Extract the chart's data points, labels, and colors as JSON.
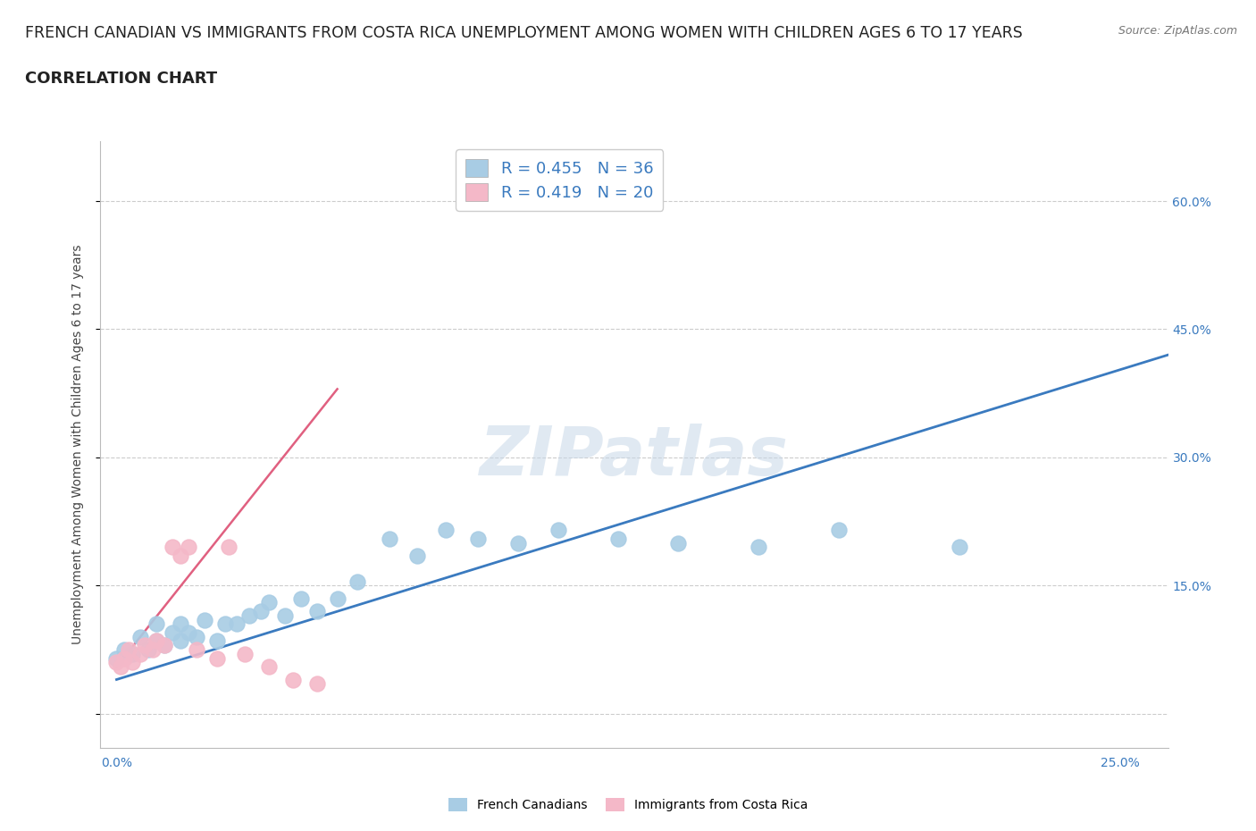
{
  "title_line1": "FRENCH CANADIAN VS IMMIGRANTS FROM COSTA RICA UNEMPLOYMENT AMONG WOMEN WITH CHILDREN AGES 6 TO 17 YEARS",
  "title_line2": "CORRELATION CHART",
  "source_text": "Source: ZipAtlas.com",
  "ylabel": "Unemployment Among Women with Children Ages 6 to 17 years",
  "x_ticks": [
    0.0,
    0.05,
    0.1,
    0.15,
    0.2,
    0.25
  ],
  "x_tick_labels": [
    "0.0%",
    "",
    "",
    "",
    "",
    "25.0%"
  ],
  "y_ticks": [
    0.0,
    0.15,
    0.3,
    0.45,
    0.6
  ],
  "y_tick_labels": [
    "",
    "15.0%",
    "30.0%",
    "45.0%",
    "60.0%"
  ],
  "xlim": [
    -0.004,
    0.262
  ],
  "ylim": [
    -0.04,
    0.67
  ],
  "watermark": "ZIPatlas",
  "legend_r1": "R = 0.455",
  "legend_n1": "N = 36",
  "legend_r2": "R = 0.419",
  "legend_n2": "N = 20",
  "blue_color": "#a8cce4",
  "pink_color": "#f4b8c8",
  "blue_line_color": "#3a7abf",
  "pink_line_color": "#e06080",
  "blue_scatter_x": [
    0.0,
    0.002,
    0.004,
    0.006,
    0.008,
    0.01,
    0.01,
    0.012,
    0.014,
    0.016,
    0.016,
    0.018,
    0.02,
    0.022,
    0.025,
    0.027,
    0.03,
    0.033,
    0.036,
    0.038,
    0.042,
    0.046,
    0.05,
    0.055,
    0.06,
    0.068,
    0.075,
    0.082,
    0.09,
    0.1,
    0.11,
    0.125,
    0.14,
    0.16,
    0.18,
    0.21
  ],
  "blue_scatter_y": [
    0.065,
    0.075,
    0.07,
    0.09,
    0.075,
    0.085,
    0.105,
    0.08,
    0.095,
    0.085,
    0.105,
    0.095,
    0.09,
    0.11,
    0.085,
    0.105,
    0.105,
    0.115,
    0.12,
    0.13,
    0.115,
    0.135,
    0.12,
    0.135,
    0.155,
    0.205,
    0.185,
    0.215,
    0.205,
    0.2,
    0.215,
    0.205,
    0.2,
    0.195,
    0.215,
    0.195
  ],
  "pink_scatter_x": [
    0.0,
    0.001,
    0.002,
    0.003,
    0.004,
    0.006,
    0.007,
    0.009,
    0.01,
    0.012,
    0.014,
    0.016,
    0.018,
    0.02,
    0.025,
    0.028,
    0.032,
    0.038,
    0.044,
    0.05
  ],
  "pink_scatter_y": [
    0.06,
    0.055,
    0.065,
    0.075,
    0.06,
    0.07,
    0.08,
    0.075,
    0.085,
    0.08,
    0.195,
    0.185,
    0.195,
    0.075,
    0.065,
    0.195,
    0.07,
    0.055,
    0.04,
    0.035
  ],
  "blue_trend_x": [
    0.0,
    0.262
  ],
  "blue_trend_y": [
    0.04,
    0.42
  ],
  "pink_trend_x": [
    0.0,
    0.055
  ],
  "pink_trend_y": [
    0.055,
    0.38
  ],
  "grid_color": "#cccccc",
  "background_color": "#ffffff",
  "title_fontsize": 12.5,
  "subtitle_fontsize": 13,
  "axis_label_fontsize": 10,
  "tick_fontsize": 10
}
